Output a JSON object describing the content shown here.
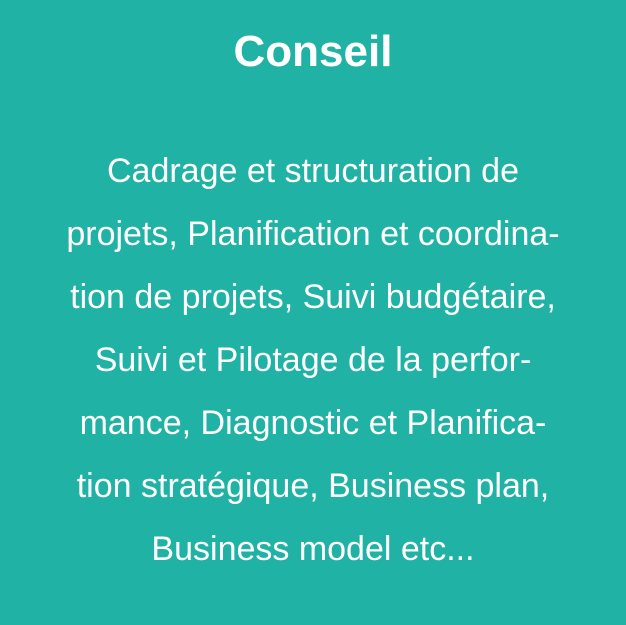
{
  "card": {
    "background_color": "#20b2a5",
    "text_color": "#ffffff",
    "title": "Conseil",
    "lines": [
      "Cadrage et structuration de",
      "projets, Planification et coordina-",
      "tion de projets, Suivi budgétaire,",
      "Suivi et Pilotage de la perfor-",
      "mance, Diagnostic et Planifica-",
      "tion stratégique, Business plan,",
      "Business model etc..."
    ]
  }
}
